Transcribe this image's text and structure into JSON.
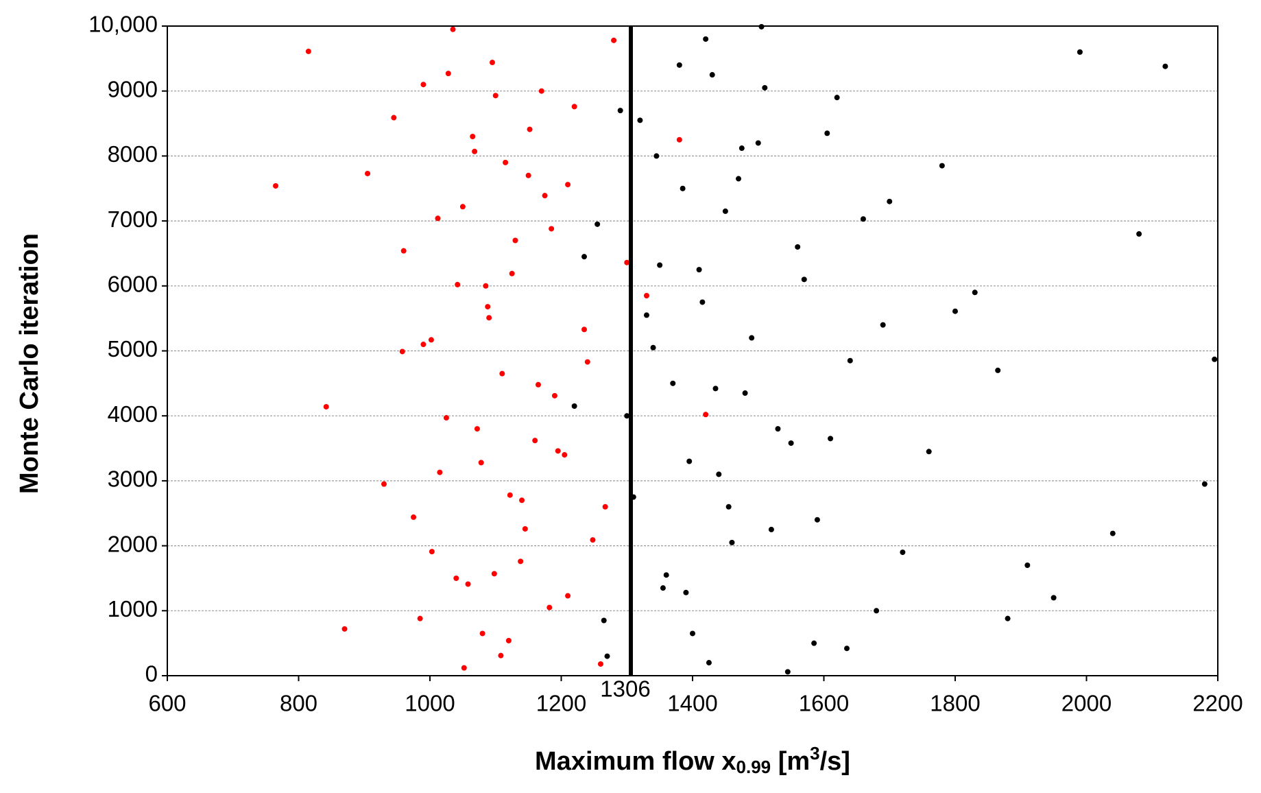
{
  "chart_data": {
    "type": "scatter",
    "ylabel": "Monte Carlo iteration",
    "xlabel": {
      "text": "Maximum flow x",
      "sub": "0.99",
      "unit_open": " [m",
      "sup": "3",
      "unit_close": "/s]"
    },
    "xlim": [
      600,
      2200
    ],
    "xticks": [
      600,
      800,
      1000,
      1200,
      1400,
      1600,
      1800,
      2000,
      2200
    ],
    "ylim": [
      0,
      10000
    ],
    "yticks": [
      0,
      1000,
      2000,
      3000,
      4000,
      5000,
      6000,
      7000,
      8000,
      9000,
      {
        "value": 10000,
        "label": "10,000"
      }
    ],
    "grid": true,
    "vline": 1306,
    "series": [
      {
        "color": "#ff0000",
        "x": [
          1052,
          1120,
          985,
          1210,
          1098,
          1003,
          1145,
          1267,
          930,
          1078,
          1160,
          1025,
          1190,
          1110,
          958,
          1235,
          1088,
          1042,
          1300,
          1130,
          1012,
          1175,
          905,
          1068,
          1152,
          1220,
          990,
          1095,
          1280,
          1035,
          1108,
          870,
          1182,
          1058,
          1138,
          1248,
          975,
          1122,
          1015,
          1195,
          1072,
          842,
          1165,
          1240,
          1002,
          1090,
          1330,
          1125,
          960,
          1185,
          1050,
          1210,
          1115,
          1380,
          945,
          1100,
          1028,
          815,
          1260,
          1080,
          765,
          1420,
          1140,
          1065,
          990,
          1170,
          1040,
          1205,
          1085,
          1150
        ],
        "values": [
          120,
          540,
          880,
          1230,
          1570,
          1910,
          2260,
          2600,
          2950,
          3280,
          3620,
          3970,
          4310,
          4650,
          4990,
          5330,
          5680,
          6020,
          6360,
          6700,
          7040,
          7390,
          7730,
          8070,
          8410,
          8760,
          9100,
          9440,
          9780,
          9950,
          310,
          720,
          1050,
          1410,
          1760,
          2090,
          2440,
          2780,
          3130,
          3460,
          3800,
          4140,
          4480,
          4830,
          5170,
          5510,
          5850,
          6190,
          6540,
          6880,
          7220,
          7560,
          7900,
          8250,
          8590,
          8930,
          9270,
          9610,
          180,
          650,
          7540,
          4020,
          2700,
          8300,
          5100,
          9000,
          1500,
          3400,
          6000,
          7700
        ]
      },
      {
        "color": "#000000",
        "x": [
          1420,
          1380,
          1510,
          1290,
          1605,
          1345,
          1470,
          1700,
          1255,
          1560,
          1410,
          1830,
          1330,
          1490,
          1640,
          1370,
          1220,
          1530,
          1760,
          1440,
          1310,
          1590,
          1460,
          1910,
          1355,
          1680,
          1400,
          1270,
          1545,
          1990,
          1430,
          1620,
          1320,
          1500,
          1780,
          1385,
          1450,
          2080,
          1235,
          1570,
          1415,
          1690,
          1340,
          1865,
          1480,
          1300,
          1610,
          1395,
          2180,
          1455,
          1520,
          1720,
          1360,
          1950,
          1265,
          1585,
          1425,
          2120,
          1475,
          1660,
          1350,
          1800,
          1435,
          1550,
          2040,
          1390,
          1880,
          1505,
          2195,
          1635
        ],
        "values": [
          9800,
          9400,
          9050,
          8700,
          8350,
          8000,
          7650,
          7300,
          6950,
          6600,
          6250,
          5900,
          5550,
          5200,
          4850,
          4500,
          4150,
          3800,
          3450,
          3100,
          2750,
          2400,
          2050,
          1700,
          1350,
          1000,
          650,
          300,
          60,
          9600,
          9250,
          8900,
          8550,
          8200,
          7850,
          7500,
          7150,
          6800,
          6450,
          6100,
          5750,
          5400,
          5050,
          4700,
          4350,
          4000,
          3650,
          3300,
          2950,
          2600,
          2250,
          1900,
          1550,
          1200,
          850,
          500,
          200,
          9380,
          8120,
          7030,
          6320,
          5610,
          4420,
          3580,
          2190,
          1280,
          880,
          9990,
          4870,
          420
        ]
      }
    ]
  }
}
